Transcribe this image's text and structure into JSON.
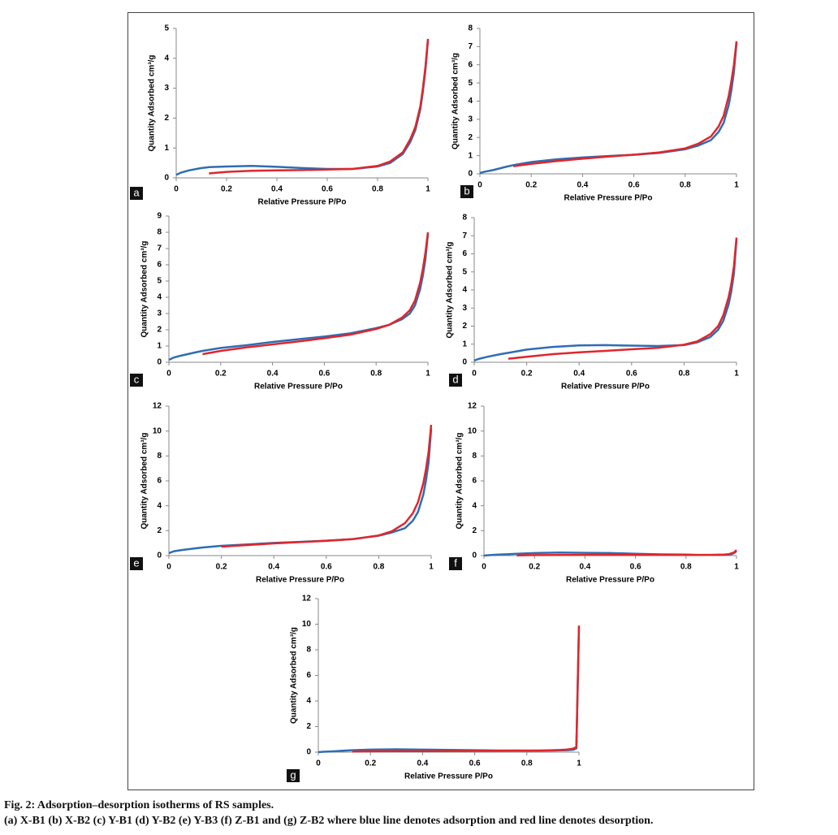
{
  "chart_data": [
    {
      "type": "line",
      "panel": "a",
      "x_label": "Relative Pressure P/Po",
      "y_label": "Quantity Adsorbed cm³/g",
      "x": [
        0,
        0.02,
        0.05,
        0.1,
        0.13,
        0.2,
        0.3,
        0.4,
        0.5,
        0.6,
        0.7,
        0.8,
        0.85,
        0.9,
        0.93,
        0.95,
        0.97,
        0.98,
        0.99,
        1
      ],
      "series": [
        {
          "color": "#2e6db4",
          "values": [
            0.1,
            0.18,
            0.25,
            0.33,
            0.36,
            0.38,
            0.4,
            0.37,
            0.33,
            0.3,
            0.3,
            0.38,
            0.5,
            0.8,
            1.2,
            1.6,
            2.3,
            2.9,
            3.6,
            4.6
          ]
        },
        {
          "color": "#e0262b",
          "values": [
            null,
            null,
            null,
            null,
            0.15,
            0.2,
            0.24,
            0.25,
            0.26,
            0.28,
            0.3,
            0.4,
            0.55,
            0.85,
            1.3,
            1.7,
            2.4,
            3.0,
            3.7,
            4.65
          ]
        }
      ],
      "xlim": [
        0,
        1
      ],
      "xticks": [
        0,
        0.2,
        0.4,
        0.6,
        0.8,
        1
      ],
      "ylim": [
        0,
        5
      ],
      "yticks": [
        0,
        1,
        2,
        3,
        4,
        5
      ]
    },
    {
      "type": "line",
      "panel": "b",
      "x_label": "Relative Pressure P/Po",
      "y_label": "Quantity Adsorbed cm³/g",
      "x": [
        0,
        0.02,
        0.05,
        0.1,
        0.13,
        0.2,
        0.3,
        0.4,
        0.5,
        0.6,
        0.7,
        0.8,
        0.85,
        0.9,
        0.93,
        0.95,
        0.97,
        0.98,
        0.99,
        1
      ],
      "series": [
        {
          "color": "#2e6db4",
          "values": [
            0.05,
            0.12,
            0.2,
            0.38,
            0.48,
            0.65,
            0.8,
            0.9,
            0.98,
            1.05,
            1.15,
            1.35,
            1.55,
            1.85,
            2.3,
            2.8,
            3.8,
            4.6,
            5.6,
            7.2
          ]
        },
        {
          "color": "#e0262b",
          "values": [
            null,
            null,
            null,
            null,
            0.42,
            0.55,
            0.7,
            0.83,
            0.95,
            1.05,
            1.18,
            1.4,
            1.65,
            2.05,
            2.6,
            3.2,
            4.3,
            5.1,
            6.0,
            7.3
          ]
        }
      ],
      "xlim": [
        0,
        1
      ],
      "xticks": [
        0,
        0.2,
        0.4,
        0.6,
        0.8,
        1
      ],
      "ylim": [
        0,
        8
      ],
      "yticks": [
        0,
        1,
        2,
        3,
        4,
        5,
        6,
        7,
        8
      ]
    },
    {
      "type": "line",
      "panel": "c",
      "x_label": "Relative Pressure P/Po",
      "y_label": "Quantity Adsorbed cm³/g",
      "x": [
        0,
        0.02,
        0.05,
        0.1,
        0.13,
        0.2,
        0.3,
        0.4,
        0.5,
        0.6,
        0.7,
        0.8,
        0.85,
        0.9,
        0.93,
        0.95,
        0.97,
        0.98,
        0.99,
        1
      ],
      "series": [
        {
          "color": "#2e6db4",
          "values": [
            0.15,
            0.3,
            0.42,
            0.6,
            0.7,
            0.88,
            1.05,
            1.25,
            1.42,
            1.58,
            1.78,
            2.1,
            2.3,
            2.65,
            3.0,
            3.5,
            4.5,
            5.3,
            6.3,
            7.9
          ]
        },
        {
          "color": "#e0262b",
          "values": [
            null,
            null,
            null,
            null,
            0.5,
            0.7,
            0.92,
            1.1,
            1.28,
            1.48,
            1.7,
            2.05,
            2.3,
            2.75,
            3.2,
            3.8,
            4.9,
            5.7,
            6.7,
            8.0
          ]
        }
      ],
      "xlim": [
        0,
        1
      ],
      "xticks": [
        0,
        0.2,
        0.4,
        0.6,
        0.8,
        1
      ],
      "ylim": [
        0,
        9
      ],
      "yticks": [
        0,
        1,
        2,
        3,
        4,
        5,
        6,
        7,
        8,
        9
      ]
    },
    {
      "type": "line",
      "panel": "d",
      "x_label": "Relative Pressure P/Po",
      "y_label": "Quantity Adsorbed cm³/g",
      "x": [
        0,
        0.02,
        0.05,
        0.1,
        0.13,
        0.2,
        0.3,
        0.4,
        0.5,
        0.6,
        0.7,
        0.8,
        0.85,
        0.9,
        0.93,
        0.95,
        0.97,
        0.98,
        0.99,
        1
      ],
      "series": [
        {
          "color": "#2e6db4",
          "values": [
            0.1,
            0.2,
            0.3,
            0.45,
            0.52,
            0.7,
            0.85,
            0.93,
            0.95,
            0.92,
            0.9,
            0.95,
            1.1,
            1.4,
            1.8,
            2.3,
            3.2,
            3.9,
            4.9,
            6.8
          ]
        },
        {
          "color": "#e0262b",
          "values": [
            null,
            null,
            null,
            null,
            0.2,
            0.3,
            0.45,
            0.55,
            0.63,
            0.72,
            0.8,
            0.97,
            1.15,
            1.55,
            2.0,
            2.6,
            3.6,
            4.3,
            5.3,
            6.9
          ]
        }
      ],
      "xlim": [
        0,
        1
      ],
      "xticks": [
        0,
        0.2,
        0.4,
        0.6,
        0.8,
        1
      ],
      "ylim": [
        0,
        8
      ],
      "yticks": [
        0,
        1,
        2,
        3,
        4,
        5,
        6,
        7,
        8
      ]
    },
    {
      "type": "line",
      "panel": "e",
      "x_label": "Relative Pressure P/Po",
      "y_label": "Quantity Adsorbed cm³/g",
      "x": [
        0,
        0.02,
        0.05,
        0.1,
        0.13,
        0.2,
        0.3,
        0.4,
        0.5,
        0.6,
        0.7,
        0.8,
        0.85,
        0.9,
        0.93,
        0.95,
        0.97,
        0.98,
        0.99,
        1
      ],
      "series": [
        {
          "color": "#2e6db4",
          "values": [
            0.2,
            0.35,
            0.45,
            0.58,
            0.65,
            0.78,
            0.9,
            1.02,
            1.1,
            1.2,
            1.32,
            1.6,
            1.85,
            2.2,
            2.8,
            3.5,
            4.9,
            6.0,
            7.5,
            10.2
          ]
        },
        {
          "color": "#e0262b",
          "values": [
            null,
            null,
            null,
            null,
            null,
            0.72,
            0.85,
            0.98,
            1.08,
            1.18,
            1.32,
            1.62,
            1.95,
            2.6,
            3.4,
            4.3,
            5.8,
            6.9,
            8.3,
            10.5
          ]
        }
      ],
      "xlim": [
        0,
        1
      ],
      "xticks": [
        0,
        0.2,
        0.4,
        0.6,
        0.8,
        1
      ],
      "ylim": [
        0,
        12
      ],
      "yticks": [
        0,
        2,
        4,
        6,
        8,
        10,
        12
      ]
    },
    {
      "type": "line",
      "panel": "f",
      "x_label": "Relative Pressure P/Po",
      "y_label": "Quantity Adsorbed cm³/g",
      "x": [
        0,
        0.02,
        0.05,
        0.1,
        0.13,
        0.2,
        0.3,
        0.4,
        0.5,
        0.6,
        0.7,
        0.8,
        0.85,
        0.9,
        0.93,
        0.95,
        0.97,
        0.98,
        0.99,
        1
      ],
      "series": [
        {
          "color": "#2e6db4",
          "values": [
            0.0,
            0.03,
            0.07,
            0.12,
            0.15,
            0.2,
            0.24,
            0.22,
            0.2,
            0.15,
            0.1,
            0.08,
            0.06,
            0.05,
            0.05,
            0.05,
            0.08,
            0.12,
            0.2,
            0.35
          ]
        },
        {
          "color": "#e0262b",
          "values": [
            null,
            null,
            null,
            null,
            0.02,
            0.04,
            0.05,
            0.06,
            0.06,
            0.06,
            0.06,
            0.05,
            0.05,
            0.06,
            0.07,
            0.08,
            0.12,
            0.18,
            0.25,
            0.45
          ]
        }
      ],
      "xlim": [
        0,
        1
      ],
      "xticks": [
        0,
        0.2,
        0.4,
        0.6,
        0.8,
        1
      ],
      "ylim": [
        0,
        12
      ],
      "yticks": [
        0,
        2,
        4,
        6,
        8,
        10,
        12
      ]
    },
    {
      "type": "line",
      "panel": "g",
      "x_label": "Relative Pressure P/Po",
      "y_label": "Quantity Adsorbed cm³/g",
      "x": [
        0,
        0.02,
        0.05,
        0.1,
        0.13,
        0.2,
        0.3,
        0.4,
        0.5,
        0.6,
        0.7,
        0.8,
        0.85,
        0.9,
        0.93,
        0.95,
        0.97,
        0.98,
        0.99,
        1
      ],
      "series": [
        {
          "color": "#2e6db4",
          "values": [
            0.0,
            0.03,
            0.06,
            0.12,
            0.15,
            0.2,
            0.22,
            0.2,
            0.18,
            0.15,
            0.13,
            0.12,
            0.12,
            0.13,
            0.14,
            0.15,
            0.18,
            0.2,
            0.3,
            9.8
          ]
        },
        {
          "color": "#e0262b",
          "values": [
            null,
            null,
            null,
            null,
            0.05,
            0.07,
            0.08,
            0.08,
            0.09,
            0.1,
            0.11,
            0.12,
            0.13,
            0.15,
            0.17,
            0.2,
            0.25,
            0.3,
            0.4,
            9.9
          ]
        }
      ],
      "xlim": [
        0,
        1
      ],
      "xticks": [
        0,
        0.2,
        0.4,
        0.6,
        0.8,
        1
      ],
      "ylim": [
        0,
        12
      ],
      "yticks": [
        0,
        2,
        4,
        6,
        8,
        10,
        12
      ]
    }
  ],
  "caption": {
    "title": "Fig. 2: Adsorption–desorption isotherms of RS samples.",
    "text": "(a) X-B1 (b) X-B2 (c) Y-B1 (d) Y-B2 (e) Y-B3 (f) Z-B1 and (g) Z-B2 where blue line denotes adsorption and red line denotes desorption."
  }
}
